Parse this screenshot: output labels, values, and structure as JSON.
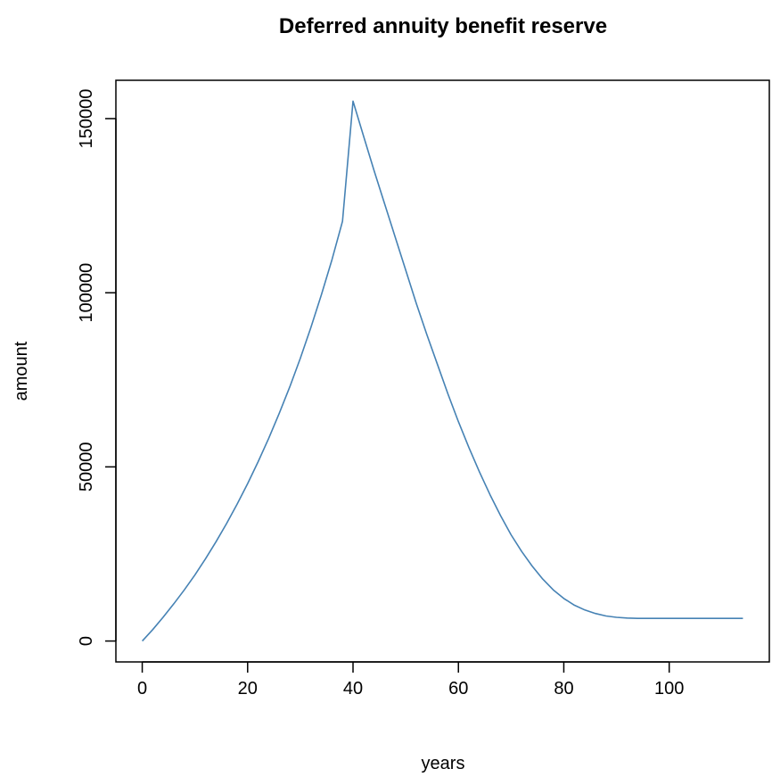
{
  "chart_data": {
    "type": "line",
    "title": "Deferred annuity benefit reserve",
    "xlabel": "years",
    "ylabel": "amount",
    "xlim": [
      -5,
      119
    ],
    "ylim": [
      -6000,
      161000
    ],
    "x_ticks": [
      0,
      20,
      40,
      60,
      80,
      100
    ],
    "y_ticks": [
      0,
      50000,
      100000,
      150000
    ],
    "x_tick_labels": [
      "0",
      "20",
      "40",
      "60",
      "80",
      "100"
    ],
    "y_tick_labels": [
      "0",
      "50000",
      "100000",
      "150000"
    ],
    "grid": false,
    "legend": "none",
    "series": [
      {
        "color": "#4682B4",
        "x": [
          0,
          2,
          4,
          6,
          8,
          10,
          12,
          14,
          16,
          18,
          20,
          22,
          24,
          26,
          28,
          30,
          32,
          34,
          36,
          38,
          40,
          42,
          44,
          46,
          48,
          50,
          52,
          54,
          56,
          58,
          60,
          62,
          64,
          66,
          68,
          70,
          72,
          74,
          76,
          78,
          80,
          82,
          84,
          86,
          88,
          90,
          92,
          94,
          96,
          98,
          100,
          102,
          104,
          106,
          108,
          110,
          112,
          114
        ],
        "y": [
          0,
          3300,
          6900,
          10700,
          14700,
          19000,
          23600,
          28500,
          33700,
          39300,
          45200,
          51500,
          58200,
          65400,
          73000,
          81200,
          90000,
          99400,
          109500,
          120500,
          155000,
          145000,
          135000,
          125500,
          116000,
          106500,
          97000,
          88000,
          79500,
          71000,
          63000,
          55500,
          48500,
          42000,
          36000,
          30500,
          25700,
          21500,
          17800,
          14700,
          12200,
          10300,
          8900,
          7900,
          7200,
          6800,
          6600,
          6500,
          6500,
          6500,
          6500,
          6500,
          6500,
          6500,
          6500,
          6500,
          6500,
          6500
        ]
      }
    ]
  }
}
